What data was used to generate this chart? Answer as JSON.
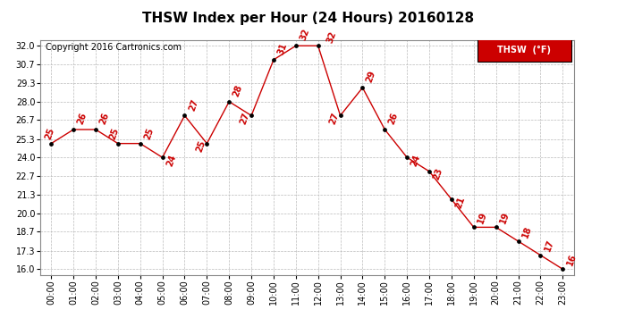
{
  "title": "THSW Index per Hour (24 Hours) 20160128",
  "copyright_text": "Copyright 2016 Cartronics.com",
  "legend_label": "THSW  (°F)",
  "hours": [
    0,
    1,
    2,
    3,
    4,
    5,
    6,
    7,
    8,
    9,
    10,
    11,
    12,
    13,
    14,
    15,
    16,
    17,
    18,
    19,
    20,
    21,
    22,
    23
  ],
  "values": [
    25,
    26,
    26,
    25,
    25,
    24,
    27,
    25,
    28,
    27,
    31,
    32,
    32,
    27,
    29,
    26,
    24,
    23,
    21,
    19,
    19,
    18,
    17,
    16
  ],
  "x_labels": [
    "00:00",
    "01:00",
    "02:00",
    "03:00",
    "04:00",
    "05:00",
    "06:00",
    "07:00",
    "08:00",
    "09:00",
    "10:00",
    "11:00",
    "12:00",
    "13:00",
    "14:00",
    "15:00",
    "16:00",
    "17:00",
    "18:00",
    "19:00",
    "20:00",
    "21:00",
    "22:00",
    "23:00"
  ],
  "y_ticks": [
    16.0,
    17.3,
    18.7,
    20.0,
    21.3,
    22.7,
    24.0,
    25.3,
    26.7,
    28.0,
    29.3,
    30.7,
    32.0
  ],
  "ylim": [
    15.6,
    32.4
  ],
  "line_color": "#cc0000",
  "marker_color": "#000000",
  "bg_color": "#ffffff",
  "plot_bg_color": "#ffffff",
  "grid_color": "#bbbbbb",
  "title_fontsize": 11,
  "label_fontsize": 7,
  "copyright_fontsize": 7,
  "annotation_fontsize": 7,
  "legend_bg_color": "#cc0000",
  "legend_text_color": "#ffffff",
  "border_color": "#888888"
}
